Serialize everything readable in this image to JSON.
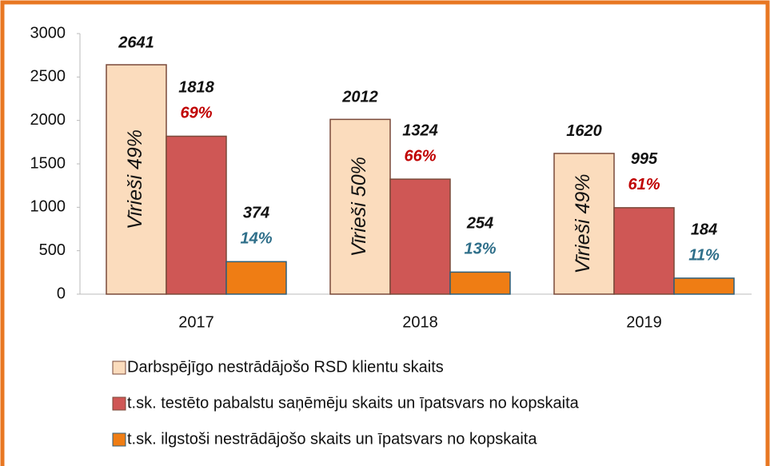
{
  "chart_data": {
    "type": "bar",
    "categories": [
      "2017",
      "2018",
      "2019"
    ],
    "series": [
      {
        "name": "Darbspējīgo nestrādājošo RSD klientu skaits",
        "color": "#fbdcbd",
        "values": [
          2641,
          2012,
          1620
        ],
        "bar_notes": [
          "Vīrieši 49%",
          "Vīrieši 50%",
          "Vīrieši 49%"
        ]
      },
      {
        "name": "t.sk. testēto pabalstu saņēmēju skaits un īpatsvars no kopskaita",
        "color": "#cf5755",
        "values": [
          1818,
          1324,
          995
        ],
        "notes": [
          "69%",
          "66%",
          "61%"
        ],
        "note_color": "#c00000"
      },
      {
        "name": "t.sk. ilgstoši nestrādājošo skaits un īpatsvars no kopskaita",
        "color": "#ef7d14",
        "values": [
          374,
          254,
          184
        ],
        "notes": [
          "14%",
          "13%",
          "11%"
        ],
        "note_color": "#2f6f8a"
      }
    ],
    "ylim": [
      0,
      3000
    ],
    "yticks": [
      0,
      500,
      1000,
      1500,
      2000,
      2500,
      3000
    ],
    "legend": "bottom"
  }
}
